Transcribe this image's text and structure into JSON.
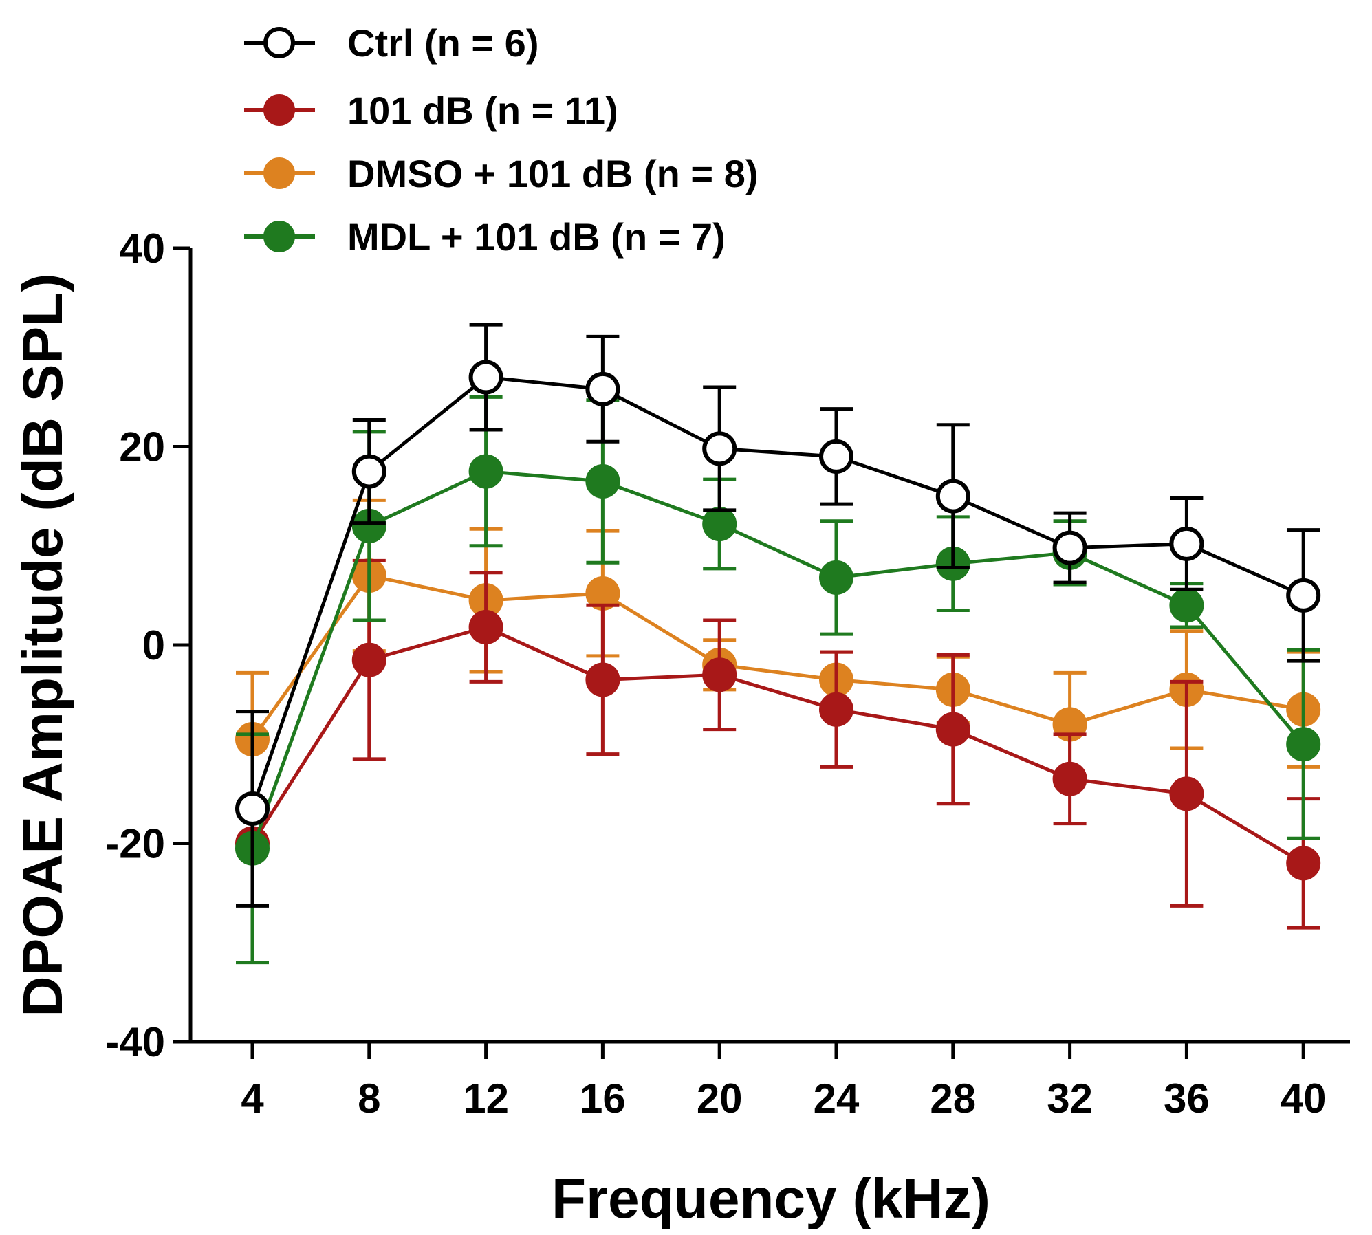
{
  "chart_data": {
    "type": "line",
    "title": "",
    "xlabel": "Frequency (kHz)",
    "ylabel": "DPOAE Amplitude (dB SPL)",
    "x": [
      4,
      8,
      12,
      16,
      20,
      24,
      28,
      32,
      36,
      40
    ],
    "x_tick_labels": [
      "4",
      "8",
      "12",
      "16",
      "20",
      "24",
      "28",
      "32",
      "36",
      "40"
    ],
    "ylim": [
      -40,
      40
    ],
    "y_ticks": [
      40,
      20,
      0,
      -20,
      -40
    ],
    "y_tick_labels": [
      "40",
      "20",
      "0",
      "-20",
      "-40"
    ],
    "legend_position": "top-left",
    "series": [
      {
        "name": "Ctrl (n = 6)",
        "color": "#000000",
        "marker": "open-circle",
        "values": [
          -16.5,
          17.5,
          27,
          25.8,
          19.8,
          19,
          15,
          9.8,
          10.2,
          5
        ],
        "errors": [
          9.8,
          5.2,
          5.3,
          5.3,
          6.2,
          4.8,
          7.2,
          3.5,
          4.6,
          6.6
        ]
      },
      {
        "name": "101 dB (n = 11)",
        "color": "#a81818",
        "marker": "filled-circle",
        "values": [
          -20,
          -1.5,
          1.8,
          -3.5,
          -3,
          -6.5,
          -8.5,
          -13.5,
          -15,
          -22
        ],
        "errors": [
          0,
          10,
          5.5,
          7.5,
          5.5,
          5.8,
          7.5,
          4.5,
          11.3,
          6.5
        ]
      },
      {
        "name": "DMSO + 101 dB (n = 8)",
        "color": "#dd8220",
        "marker": "filled-circle",
        "values": [
          -9.5,
          7,
          4.5,
          5.2,
          -2,
          -3.5,
          -4.5,
          -8,
          -4.5,
          -6.5
        ],
        "errors": [
          6.7,
          7.6,
          7.2,
          6.3,
          2.5,
          2.8,
          3.3,
          5.2,
          5.9,
          5.8
        ]
      },
      {
        "name": "MDL + 101 dB (n = 7)",
        "color": "#1f7a1f",
        "marker": "filled-circle",
        "values": [
          -20.5,
          12,
          17.5,
          16.5,
          12.2,
          6.8,
          8.2,
          9.3,
          4,
          -10
        ],
        "errors": [
          11.5,
          9.5,
          7.5,
          8.2,
          4.5,
          5.7,
          4.7,
          3.2,
          2.2,
          9.5
        ]
      }
    ]
  }
}
